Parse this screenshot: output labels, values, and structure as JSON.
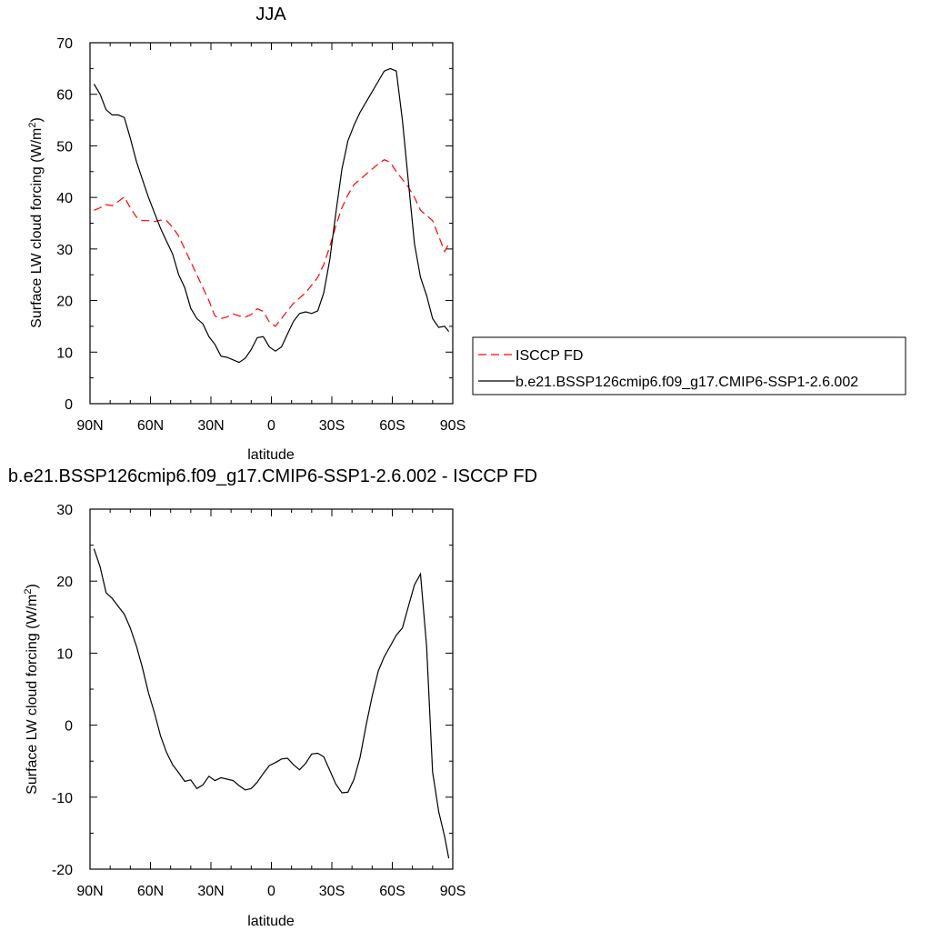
{
  "chart_data": [
    {
      "type": "line",
      "title": "JJA",
      "xlabel": "latitude",
      "ylabel_main": "Surface LW cloud forcing (W/m",
      "ylabel_sup": "2",
      "ylabel_close": ")",
      "xlim": [
        90,
        -90
      ],
      "ylim": [
        0,
        70
      ],
      "x_ticks": [
        90,
        60,
        30,
        0,
        -30,
        -60,
        -90
      ],
      "x_tick_labels": [
        "90N",
        "60N",
        "30N",
        "0",
        "30S",
        "60S",
        "90S"
      ],
      "y_ticks": [
        0,
        10,
        20,
        30,
        40,
        50,
        60,
        70
      ],
      "y_tick_labels": [
        "0",
        "10",
        "20",
        "30",
        "40",
        "50",
        "60",
        "70"
      ],
      "legend_position": "right",
      "series": [
        {
          "name": "ISCCP FD",
          "color": "#ff0000",
          "dash": "dashed",
          "x": [
            88,
            85,
            82,
            79,
            76,
            73,
            70,
            67,
            64,
            61,
            58,
            55,
            52,
            49,
            46,
            43,
            40,
            37,
            34,
            31,
            28,
            25,
            22,
            19,
            16,
            13,
            10,
            7,
            4,
            1,
            -2,
            -5,
            -8,
            -11,
            -14,
            -17,
            -20,
            -23,
            -26,
            -29,
            -32,
            -35,
            -38,
            -41,
            -44,
            -47,
            -50,
            -53,
            -56,
            -59,
            -62,
            -65,
            -68,
            -71,
            -74,
            -77,
            -80,
            -83,
            -86,
            -88
          ],
          "y": [
            37.5,
            38.0,
            38.6,
            38.4,
            39.2,
            40.1,
            38.0,
            36.2,
            35.5,
            35.5,
            35.3,
            35.6,
            35.5,
            34.2,
            32.5,
            30.0,
            27.5,
            25.0,
            22.5,
            20.0,
            17.0,
            16.5,
            16.8,
            17.4,
            17.0,
            16.8,
            17.3,
            18.4,
            17.9,
            15.8,
            15.0,
            16.5,
            18.0,
            19.5,
            20.5,
            21.5,
            23.0,
            24.5,
            27.0,
            30.5,
            34.5,
            38.0,
            40.5,
            42.5,
            43.5,
            44.5,
            45.5,
            46.5,
            47.3,
            46.8,
            45.0,
            43.5,
            42.0,
            40.0,
            37.5,
            36.5,
            35.5,
            32.5,
            29.5,
            31.0
          ]
        },
        {
          "name": "b.e21.BSSP126cmip6.f09_g17.CMIP6-SSP1-2.6.002",
          "color": "#000000",
          "dash": "solid",
          "x": [
            88,
            85,
            82,
            79,
            76,
            73,
            70,
            67,
            64,
            61,
            58,
            55,
            52,
            49,
            46,
            43,
            40,
            37,
            34,
            31,
            28,
            25,
            22,
            19,
            16,
            13,
            10,
            7,
            4,
            1,
            -2,
            -5,
            -8,
            -11,
            -14,
            -17,
            -20,
            -23,
            -26,
            -29,
            -32,
            -35,
            -38,
            -41,
            -44,
            -47,
            -50,
            -53,
            -56,
            -59,
            -62,
            -65,
            -68,
            -71,
            -74,
            -77,
            -80,
            -83,
            -86,
            -88
          ],
          "y": [
            62.0,
            60.0,
            57.0,
            56.0,
            56.0,
            55.5,
            51.5,
            47.0,
            43.5,
            40.0,
            37.0,
            34.0,
            31.5,
            29.0,
            25.0,
            22.5,
            18.5,
            16.5,
            15.5,
            13.0,
            11.5,
            9.2,
            9.0,
            8.5,
            8.0,
            8.8,
            10.5,
            12.8,
            13.0,
            11.0,
            10.2,
            11.0,
            13.5,
            16.0,
            17.5,
            17.8,
            17.5,
            18.0,
            21.5,
            28.0,
            37.0,
            45.5,
            51.0,
            54.0,
            56.5,
            58.5,
            60.5,
            62.5,
            64.5,
            65.0,
            64.5,
            55.0,
            43.0,
            31.0,
            24.5,
            21.0,
            16.5,
            14.8,
            15.0,
            14.0
          ]
        }
      ]
    },
    {
      "type": "line",
      "title": "b.e21.BSSP126cmip6.f09_g17.CMIP6-SSP1-2.6.002 - ISCCP FD",
      "xlabel": "latitude",
      "ylabel_main": "Surface LW cloud forcing (W/m",
      "ylabel_sup": "2",
      "ylabel_close": ")",
      "xlim": [
        90,
        -90
      ],
      "ylim": [
        -20,
        30
      ],
      "x_ticks": [
        90,
        60,
        30,
        0,
        -30,
        -60,
        -90
      ],
      "x_tick_labels": [
        "90N",
        "60N",
        "30N",
        "0",
        "30S",
        "60S",
        "90S"
      ],
      "y_ticks": [
        -20,
        -10,
        0,
        10,
        20,
        30
      ],
      "y_tick_labels": [
        "-20",
        "-10",
        "0",
        "10",
        "20",
        "30"
      ],
      "series": [
        {
          "color": "#000000",
          "dash": "solid",
          "x": [
            88,
            85,
            82,
            79,
            76,
            73,
            70,
            67,
            64,
            61,
            58,
            55,
            52,
            49,
            46,
            43,
            40,
            37,
            34,
            31,
            28,
            25,
            22,
            19,
            16,
            13,
            10,
            7,
            4,
            1,
            -2,
            -5,
            -8,
            -11,
            -14,
            -17,
            -20,
            -23,
            -26,
            -29,
            -32,
            -35,
            -38,
            -41,
            -44,
            -47,
            -50,
            -53,
            -56,
            -59,
            -62,
            -65,
            -68,
            -71,
            -74,
            -77,
            -80,
            -83,
            -86,
            -88
          ],
          "y": [
            24.5,
            22.0,
            18.4,
            17.6,
            16.5,
            15.4,
            13.5,
            11.0,
            8.0,
            4.5,
            1.7,
            -1.5,
            -3.8,
            -5.5,
            -6.6,
            -7.8,
            -7.6,
            -8.8,
            -8.3,
            -7.1,
            -7.7,
            -7.3,
            -7.5,
            -7.7,
            -8.4,
            -9.0,
            -8.8,
            -7.9,
            -6.7,
            -5.6,
            -5.2,
            -4.7,
            -4.6,
            -5.5,
            -6.2,
            -5.3,
            -4.0,
            -3.9,
            -4.4,
            -6.3,
            -8.2,
            -9.4,
            -9.3,
            -7.5,
            -4.5,
            0.0,
            4.0,
            7.5,
            9.5,
            11.0,
            12.5,
            13.5,
            16.5,
            19.5,
            21.0,
            11.0,
            -6.5,
            -12.0,
            -15.5,
            -18.5
          ]
        }
      ]
    }
  ]
}
